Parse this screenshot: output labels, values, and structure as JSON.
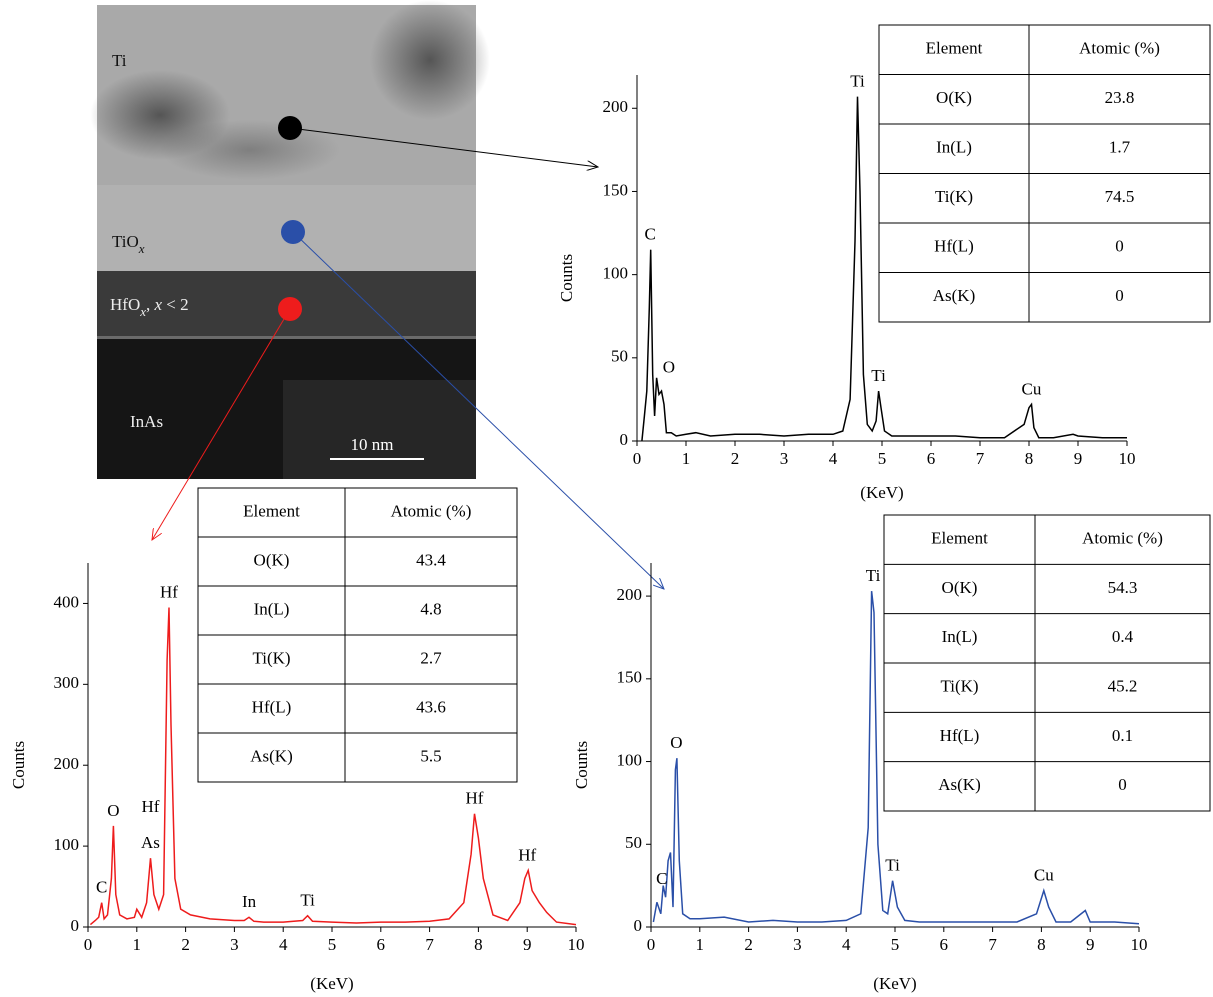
{
  "image": {
    "labels": [
      [
        {
          "text": "Ti"
        }
      ],
      [
        {
          "text": "TiO"
        },
        {
          "text": "x",
          "style": "sub"
        }
      ],
      [
        {
          "text": "HfO"
        },
        {
          "text": "x",
          "style": "sub"
        },
        {
          "text": ", "
        },
        {
          "text": "x",
          "style": "italic"
        },
        {
          "text": " < 2"
        }
      ],
      [
        {
          "text": "InAs"
        }
      ]
    ],
    "scale_bar": "10 nm"
  },
  "chart_data": [
    {
      "type": "line",
      "color": "#000000",
      "y_label": "Counts",
      "x_label": "(KeV)",
      "xlim": [
        0,
        10
      ],
      "xticks": [
        0,
        1,
        2,
        3,
        4,
        5,
        6,
        7,
        8,
        9,
        10
      ],
      "ylim": [
        0,
        220
      ],
      "yticks": [
        0,
        50,
        100,
        150,
        200
      ],
      "x": [
        0.1,
        0.15,
        0.2,
        0.25,
        0.28,
        0.32,
        0.36,
        0.4,
        0.45,
        0.5,
        0.55,
        0.6,
        0.7,
        0.8,
        1,
        1.2,
        1.5,
        2,
        2.5,
        3,
        3.5,
        4,
        4.2,
        4.35,
        4.45,
        4.5,
        4.55,
        4.62,
        4.7,
        4.8,
        4.88,
        4.93,
        4.98,
        5.05,
        5.2,
        5.5,
        6,
        6.5,
        7,
        7.5,
        7.9,
        8.0,
        8.05,
        8.1,
        8.2,
        8.5,
        8.9,
        9,
        9.5,
        10
      ],
      "values": [
        0,
        15,
        30,
        80,
        115,
        40,
        15,
        38,
        28,
        30,
        22,
        5,
        5,
        3,
        4,
        5,
        3,
        4,
        4,
        3,
        4,
        4,
        6,
        25,
        120,
        207,
        150,
        40,
        10,
        6,
        12,
        30,
        20,
        6,
        3,
        3,
        3,
        3,
        2,
        2,
        10,
        20,
        22,
        8,
        2,
        2,
        4,
        3,
        2,
        2
      ],
      "annotations": [
        {
          "text": "C",
          "x": 0.27,
          "y": 115
        },
        {
          "text": "O",
          "x": 0.65,
          "y": 35
        },
        {
          "text": "Ti",
          "x": 4.5,
          "y": 207
        },
        {
          "text": "Ti",
          "x": 4.93,
          "y": 30
        },
        {
          "text": "Cu",
          "x": 8.05,
          "y": 22
        }
      ]
    },
    {
      "type": "line",
      "color": "#ee1c1c",
      "y_label": "Counts",
      "x_label": "(KeV)",
      "xlim": [
        0,
        10
      ],
      "xticks": [
        0,
        1,
        2,
        3,
        4,
        5,
        6,
        7,
        8,
        9,
        10
      ],
      "ylim": [
        0,
        450
      ],
      "yticks": [
        0,
        100,
        200,
        300,
        400
      ],
      "x": [
        0.05,
        0.15,
        0.22,
        0.28,
        0.33,
        0.4,
        0.48,
        0.52,
        0.57,
        0.65,
        0.8,
        0.95,
        1.0,
        1.1,
        1.2,
        1.28,
        1.35,
        1.45,
        1.55,
        1.62,
        1.66,
        1.7,
        1.78,
        1.9,
        2.1,
        2.5,
        3,
        3.2,
        3.3,
        3.4,
        3.6,
        4,
        4.4,
        4.5,
        4.6,
        5,
        5.5,
        6,
        6.5,
        7,
        7.4,
        7.7,
        7.85,
        7.92,
        8.0,
        8.1,
        8.3,
        8.6,
        8.85,
        8.95,
        9.02,
        9.1,
        9.25,
        9.4,
        9.6,
        10
      ],
      "values": [
        3,
        8,
        12,
        30,
        10,
        15,
        60,
        125,
        40,
        15,
        10,
        12,
        22,
        12,
        30,
        85,
        40,
        22,
        40,
        330,
        395,
        250,
        60,
        22,
        15,
        10,
        8,
        8,
        12,
        7,
        6,
        6,
        8,
        14,
        7,
        6,
        5,
        6,
        6,
        7,
        10,
        30,
        90,
        140,
        110,
        60,
        15,
        8,
        30,
        60,
        70,
        45,
        30,
        18,
        6,
        3
      ],
      "annotations": [
        {
          "text": "C",
          "x": 0.28,
          "y": 30
        },
        {
          "text": "O",
          "x": 0.52,
          "y": 125
        },
        {
          "text": "As",
          "x": 1.28,
          "y": 85
        },
        {
          "text": "Hf",
          "x": 1.28,
          "y": 130
        },
        {
          "text": "Hf",
          "x": 1.66,
          "y": 395
        },
        {
          "text": "In",
          "x": 3.3,
          "y": 12
        },
        {
          "text": "Ti",
          "x": 4.5,
          "y": 14
        },
        {
          "text": "Hf",
          "x": 7.92,
          "y": 140
        },
        {
          "text": "Hf",
          "x": 9.0,
          "y": 70
        }
      ]
    },
    {
      "type": "line",
      "color": "#2a4fa8",
      "y_label": "Counts",
      "x_label": "(KeV)",
      "xlim": [
        0,
        10
      ],
      "xticks": [
        0,
        1,
        2,
        3,
        4,
        5,
        6,
        7,
        8,
        9,
        10
      ],
      "ylim": [
        0,
        220
      ],
      "yticks": [
        0,
        50,
        100,
        150,
        200
      ],
      "x": [
        0.05,
        0.12,
        0.2,
        0.25,
        0.3,
        0.35,
        0.4,
        0.45,
        0.5,
        0.53,
        0.58,
        0.65,
        0.8,
        1,
        1.5,
        2,
        2.5,
        3,
        3.5,
        4,
        4.3,
        4.45,
        4.52,
        4.57,
        4.65,
        4.75,
        4.85,
        4.95,
        5.05,
        5.2,
        5.5,
        6,
        6.5,
        7,
        7.5,
        7.9,
        8.05,
        8.15,
        8.3,
        8.6,
        8.9,
        9,
        9.5,
        10
      ],
      "values": [
        3,
        15,
        8,
        25,
        18,
        40,
        45,
        12,
        95,
        102,
        40,
        8,
        5,
        5,
        6,
        3,
        4,
        3,
        3,
        4,
        8,
        60,
        203,
        190,
        50,
        10,
        8,
        28,
        12,
        4,
        3,
        3,
        3,
        3,
        3,
        8,
        22,
        12,
        3,
        3,
        10,
        3,
        3,
        2
      ],
      "annotations": [
        {
          "text": "C",
          "x": 0.22,
          "y": 20
        },
        {
          "text": "O",
          "x": 0.52,
          "y": 102
        },
        {
          "text": "Ti",
          "x": 4.55,
          "y": 203
        },
        {
          "text": "Ti",
          "x": 4.95,
          "y": 28
        },
        {
          "text": "Cu",
          "x": 8.05,
          "y": 22
        }
      ]
    }
  ],
  "tables": [
    {
      "header": [
        "Element",
        "Atomic (%)"
      ],
      "rows": [
        [
          "O(K)",
          "23.8"
        ],
        [
          "In(L)",
          "1.7"
        ],
        [
          "Ti(K)",
          "74.5"
        ],
        [
          "Hf(L)",
          "0"
        ],
        [
          "As(K)",
          "0"
        ]
      ]
    },
    {
      "header": [
        "Element",
        "Atomic (%)"
      ],
      "rows": [
        [
          "O(K)",
          "43.4"
        ],
        [
          "In(L)",
          "4.8"
        ],
        [
          "Ti(K)",
          "2.7"
        ],
        [
          "Hf(L)",
          "43.6"
        ],
        [
          "As(K)",
          "5.5"
        ]
      ]
    },
    {
      "header": [
        "Element",
        "Atomic (%)"
      ],
      "rows": [
        [
          "O(K)",
          "54.3"
        ],
        [
          "In(L)",
          "0.4"
        ],
        [
          "Ti(K)",
          "45.2"
        ],
        [
          "Hf(L)",
          "0.1"
        ],
        [
          "As(K)",
          "0"
        ]
      ]
    }
  ]
}
